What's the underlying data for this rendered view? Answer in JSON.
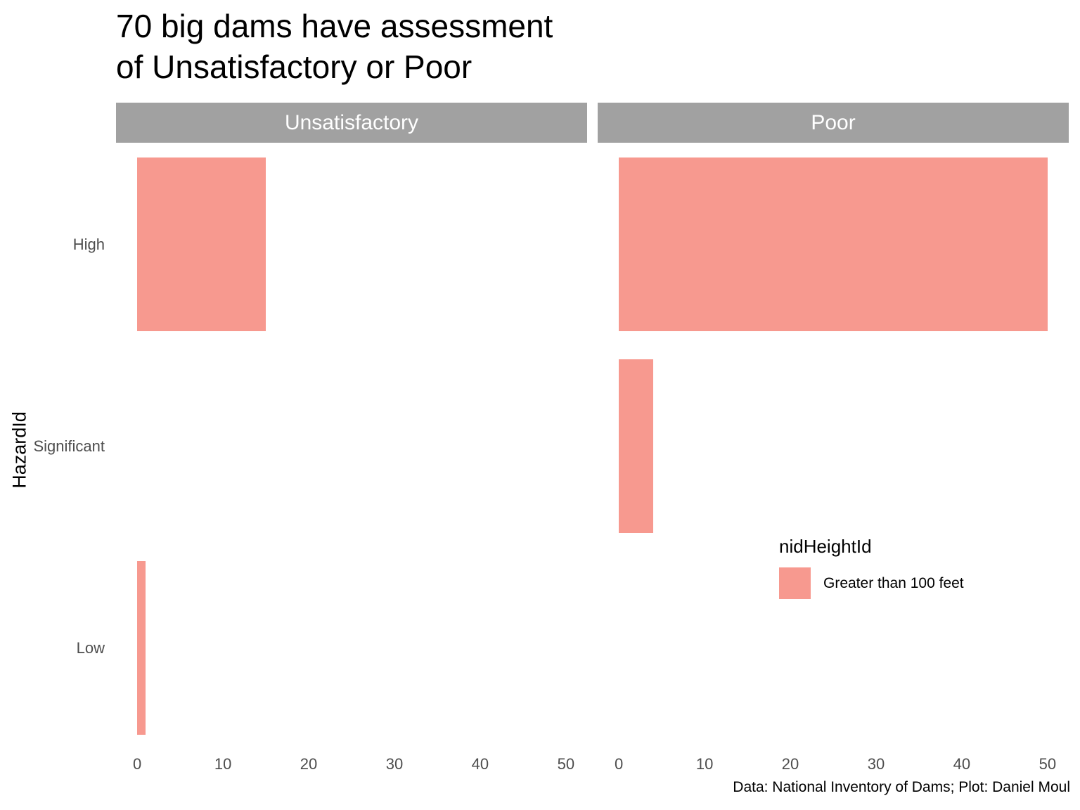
{
  "title": {
    "line1": "70 big dams have assessment",
    "line2": "of Unsatisfactory or Poor"
  },
  "ylab": "HazardId",
  "legend": {
    "title": "nidHeightId",
    "items": [
      {
        "label": "Greater than 100 feet",
        "color": "#F7998F"
      }
    ]
  },
  "caption": "Data: National Inventory of Dams; Plot: Daniel Moul",
  "chart_data": {
    "type": "bar",
    "orientation": "horizontal",
    "title": "70 big dams have assessment of Unsatisfactory or Poor",
    "ylabel": "HazardId",
    "categories": [
      "High",
      "Significant",
      "Low"
    ],
    "facets": [
      {
        "label": "Unsatisfactory",
        "values": [
          15,
          0,
          1
        ]
      },
      {
        "label": "Poor",
        "values": [
          50,
          4,
          0
        ]
      }
    ],
    "x_ticks": [
      0,
      10,
      20,
      30,
      40,
      50
    ],
    "xlim": [
      0,
      50
    ],
    "bar_color": "#F7998F",
    "strip_color": "#A1A1A1",
    "axis_text_color": "#4d4d4d",
    "grid": false,
    "legend_position": "inside-right"
  }
}
